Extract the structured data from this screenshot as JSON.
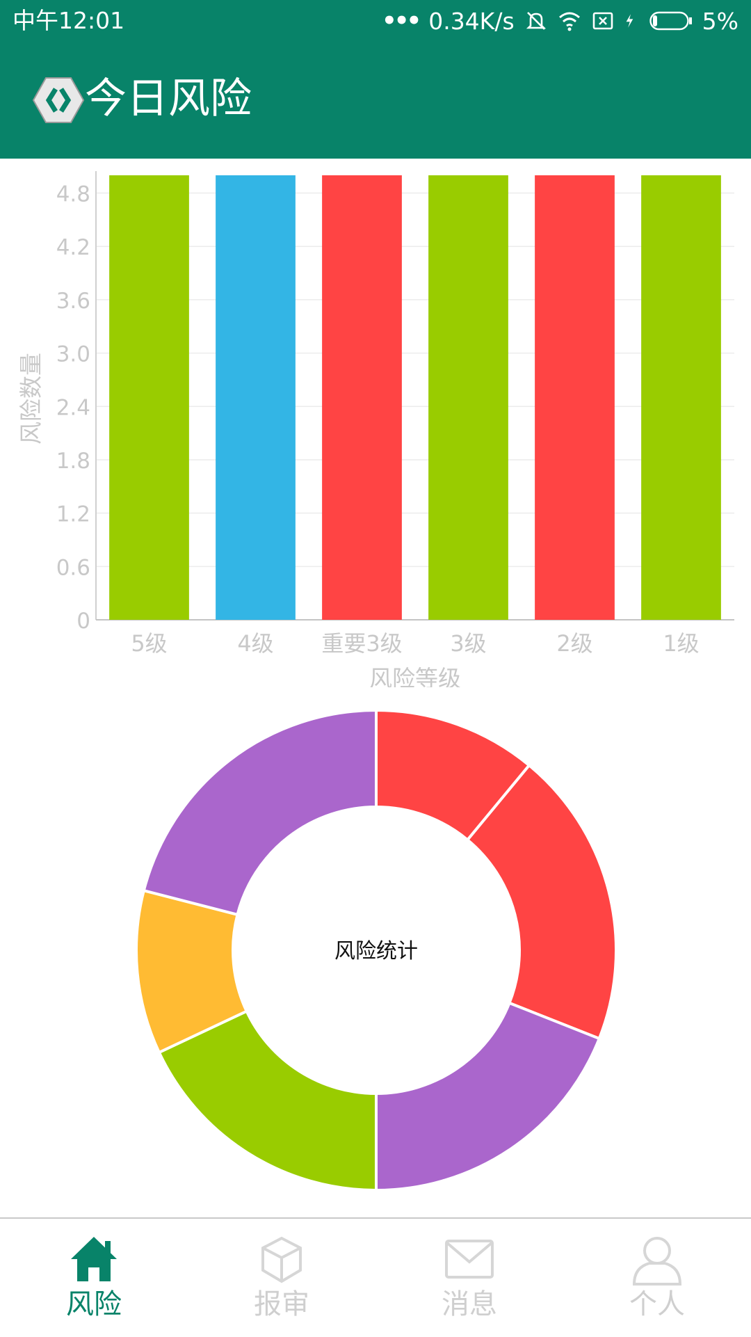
{
  "status_bar": {
    "time": "中午12:01",
    "network_speed": "0.34K/s",
    "battery": "5%"
  },
  "app_bar": {
    "title": "今日风险",
    "logo_icon": "app-logo-icon"
  },
  "colors": {
    "primary": "#088369",
    "green": "#99CC00",
    "blue": "#33B5E5",
    "red": "#FF4444",
    "purple": "#AA66CC",
    "orange": "#FFBB33",
    "axis_text": "#c8c8c8"
  },
  "chart_data": [
    {
      "type": "bar",
      "categories": [
        "5级",
        "4级",
        "重要3级",
        "3级",
        "2级",
        "1级"
      ],
      "values": [
        5,
        5,
        5,
        5,
        5,
        5
      ],
      "colors": [
        "#99CC00",
        "#33B5E5",
        "#FF4444",
        "#99CC00",
        "#FF4444",
        "#99CC00"
      ],
      "xlabel": "风险等级",
      "ylabel": "风险数量",
      "ylim": [
        0,
        5
      ],
      "yticks": [
        "0",
        "0.6",
        "1.2",
        "1.8",
        "2.4",
        "3.0",
        "3.6",
        "4.2",
        "4.8"
      ],
      "ytick_values": [
        0,
        0.6,
        1.2,
        1.8,
        2.4,
        3.0,
        3.6,
        4.2,
        4.8
      ],
      "grid": true
    },
    {
      "type": "pie",
      "center_text": "风险统计",
      "values": [
        20,
        19,
        18,
        11,
        21,
        11
      ],
      "colors": [
        "#FF4444",
        "#AA66CC",
        "#99CC00",
        "#FFBB33",
        "#AA66CC",
        "#FF4444"
      ],
      "donut": true
    }
  ],
  "bottom_nav": {
    "items": [
      {
        "label": "风险",
        "icon": "home-icon",
        "active": true
      },
      {
        "label": "报审",
        "icon": "cube-icon",
        "active": false
      },
      {
        "label": "消息",
        "icon": "mail-icon",
        "active": false
      },
      {
        "label": "个人",
        "icon": "person-icon",
        "active": false
      }
    ]
  }
}
